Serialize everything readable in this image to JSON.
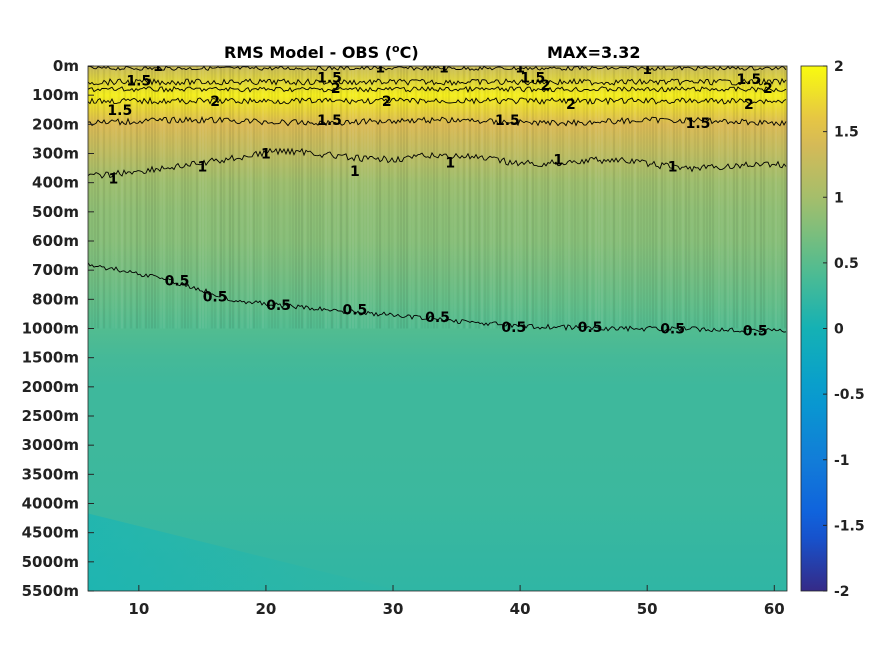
{
  "chart_data": {
    "type": "heatmap",
    "title": "RMS Model - OBS (",
    "title_super": "o",
    "title_unit": "C)",
    "max_label": "MAX=3.32",
    "xlabel": "",
    "ylabel": "",
    "x_ticks": [
      10,
      20,
      30,
      40,
      50,
      60
    ],
    "xlim": [
      6,
      61
    ],
    "depth_tick_labels": [
      "0m",
      "100m",
      "200m",
      "300m",
      "400m",
      "500m",
      "600m",
      "700m",
      "800m",
      "1000m",
      "1500m",
      "2000m",
      "2500m",
      "3000m",
      "3500m",
      "4000m",
      "4500m",
      "5000m",
      "5500m"
    ],
    "y_scale": "piecewise depth levels (stretched upper ocean)",
    "colormap": "parula",
    "clim": [
      -2,
      2
    ],
    "colorbar_ticks": [
      "2",
      "1.5",
      "1",
      "0.5",
      "0",
      "-0.5",
      "-1",
      "-1.5",
      "-2"
    ],
    "colorbar_values": [
      2,
      1.5,
      1,
      0.5,
      0,
      -0.5,
      -1,
      -1.5,
      -2
    ],
    "depth_profile": [
      {
        "depth": "0m",
        "rms": 1.3
      },
      {
        "depth": "100m",
        "rms": 1.9
      },
      {
        "depth": "200m",
        "rms": 1.45
      },
      {
        "depth": "300m",
        "rms": 1.2
      },
      {
        "depth": "400m",
        "rms": 0.95
      },
      {
        "depth": "500m",
        "rms": 0.85
      },
      {
        "depth": "600m",
        "rms": 0.8
      },
      {
        "depth": "700m",
        "rms": 0.7
      },
      {
        "depth": "800m",
        "rms": 0.58
      },
      {
        "depth": "1000m",
        "rms": 0.45
      },
      {
        "depth": "1500m",
        "rms": 0.35
      },
      {
        "depth": "2000m",
        "rms": 0.3
      },
      {
        "depth": "3000m",
        "rms": 0.3
      },
      {
        "depth": "4000m",
        "rms": 0.28
      },
      {
        "depth": "5000m",
        "rms": 0.22
      },
      {
        "depth": "5500m",
        "rms": 0.2
      }
    ],
    "contour_levels": [
      0.5,
      1,
      1.5,
      2
    ],
    "contour_labels": [
      {
        "text": "1",
        "x": 11.5,
        "depth": "0m"
      },
      {
        "text": "1.5",
        "x": 10,
        "depth": "50m"
      },
      {
        "text": "1.5",
        "x": 8.5,
        "depth": "150m"
      },
      {
        "text": "2",
        "x": 16,
        "depth": "120m"
      },
      {
        "text": "1.5",
        "x": 25,
        "depth": "40m"
      },
      {
        "text": "2",
        "x": 25.5,
        "depth": "75m"
      },
      {
        "text": "1",
        "x": 29,
        "depth": "5m"
      },
      {
        "text": "2",
        "x": 29.5,
        "depth": "120m"
      },
      {
        "text": "1",
        "x": 34,
        "depth": "5m"
      },
      {
        "text": "1.5",
        "x": 25,
        "depth": "185m"
      },
      {
        "text": "1",
        "x": 40,
        "depth": "5m"
      },
      {
        "text": "1.5",
        "x": 41,
        "depth": "40m"
      },
      {
        "text": "2",
        "x": 42,
        "depth": "65m"
      },
      {
        "text": "1.5",
        "x": 39,
        "depth": "185m"
      },
      {
        "text": "2",
        "x": 44,
        "depth": "130m"
      },
      {
        "text": "1",
        "x": 50,
        "depth": "10m"
      },
      {
        "text": "1.5",
        "x": 54,
        "depth": "195m"
      },
      {
        "text": "1.5",
        "x": 58,
        "depth": "45m"
      },
      {
        "text": "2",
        "x": 59.5,
        "depth": "75m"
      },
      {
        "text": "2",
        "x": 58,
        "depth": "130m"
      },
      {
        "text": "1",
        "x": 8,
        "depth": "385m"
      },
      {
        "text": "1",
        "x": 15,
        "depth": "345m"
      },
      {
        "text": "1",
        "x": 20,
        "depth": "300m"
      },
      {
        "text": "1",
        "x": 27,
        "depth": "360m"
      },
      {
        "text": "1",
        "x": 34.5,
        "depth": "330m"
      },
      {
        "text": "1",
        "x": 43,
        "depth": "320m"
      },
      {
        "text": "1",
        "x": 52,
        "depth": "345m"
      },
      {
        "text": "0.5",
        "x": 13,
        "depth": "735m"
      },
      {
        "text": "0.5",
        "x": 16,
        "depth": "790m"
      },
      {
        "text": "0.5",
        "x": 21,
        "depth": "840m"
      },
      {
        "text": "0.5",
        "x": 27,
        "depth": "870m"
      },
      {
        "text": "0.5",
        "x": 33.5,
        "depth": "920m"
      },
      {
        "text": "0.5",
        "x": 39.5,
        "depth": "990m"
      },
      {
        "text": "0.5",
        "x": 45.5,
        "depth": "990m"
      },
      {
        "text": "0.5",
        "x": 52,
        "depth": "1000m"
      },
      {
        "text": "0.5",
        "x": 58.5,
        "depth": "1030m"
      }
    ]
  }
}
